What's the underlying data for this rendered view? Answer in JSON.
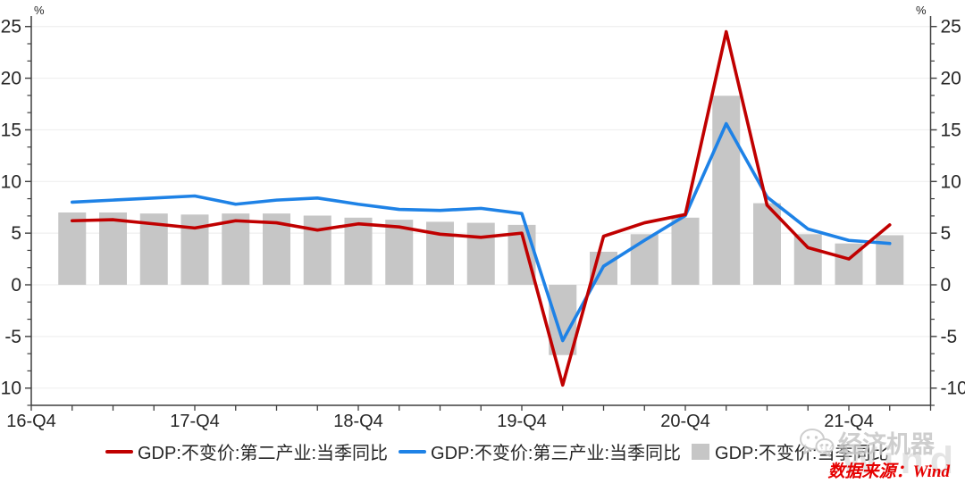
{
  "chart_data": {
    "type": "combo",
    "title": "",
    "xlabel": "",
    "ylabel": "%",
    "unit_left": "%",
    "unit_right": "%",
    "grid": "horizontal",
    "legend_position": "bottom",
    "ylim": [
      -11.7,
      25.8
    ],
    "y_ticks": [
      -10,
      -5,
      0,
      5,
      10,
      15,
      20,
      25
    ],
    "x_axis_start": "16-Q4",
    "x_tick_labels": [
      "16-Q4",
      "17-Q4",
      "18-Q4",
      "19-Q4",
      "20-Q4",
      "21-Q4"
    ],
    "categories": [
      "17-Q1",
      "17-Q2",
      "17-Q3",
      "17-Q4",
      "18-Q1",
      "18-Q2",
      "18-Q3",
      "18-Q4",
      "19-Q1",
      "19-Q2",
      "19-Q3",
      "19-Q4",
      "20-Q1",
      "20-Q2",
      "20-Q3",
      "20-Q4",
      "21-Q1",
      "21-Q2",
      "21-Q3",
      "21-Q4",
      "22-Q1"
    ],
    "series": [
      {
        "name": "GDP:不变价:第二产业:当季同比",
        "type": "line",
        "color": "#c00000",
        "values": [
          6.2,
          6.3,
          5.9,
          5.5,
          6.2,
          6.0,
          5.3,
          5.9,
          5.6,
          4.9,
          4.6,
          5.0,
          -9.7,
          4.7,
          6.0,
          6.8,
          24.5,
          7.7,
          3.6,
          2.5,
          5.8
        ]
      },
      {
        "name": "GDP:不变价:第三产业:当季同比",
        "type": "line",
        "color": "#1e82e6",
        "values": [
          8.0,
          8.2,
          8.4,
          8.6,
          7.8,
          8.2,
          8.4,
          7.8,
          7.3,
          7.2,
          7.4,
          6.9,
          -5.4,
          1.8,
          4.3,
          6.7,
          15.6,
          8.5,
          5.4,
          4.3,
          4.0
        ]
      },
      {
        "name": "GDP:不变价:当季同比",
        "type": "bar",
        "color": "#c6c6c6",
        "values": [
          7.0,
          7.0,
          6.9,
          6.8,
          6.9,
          6.9,
          6.7,
          6.5,
          6.3,
          6.1,
          6.0,
          5.8,
          -6.8,
          3.2,
          4.9,
          6.5,
          18.3,
          7.9,
          4.9,
          4.0,
          4.8
        ]
      }
    ],
    "colors": {
      "axis": "#3f3f3f",
      "gridline": "#efefef",
      "tick_label": "#262626"
    }
  },
  "watermark": {
    "brand": "经济机器",
    "wind_logo": "Wind",
    "icon": "wechat-icon"
  },
  "footer": {
    "source": "数据来源：Wind",
    "source_color": "#e60000"
  }
}
